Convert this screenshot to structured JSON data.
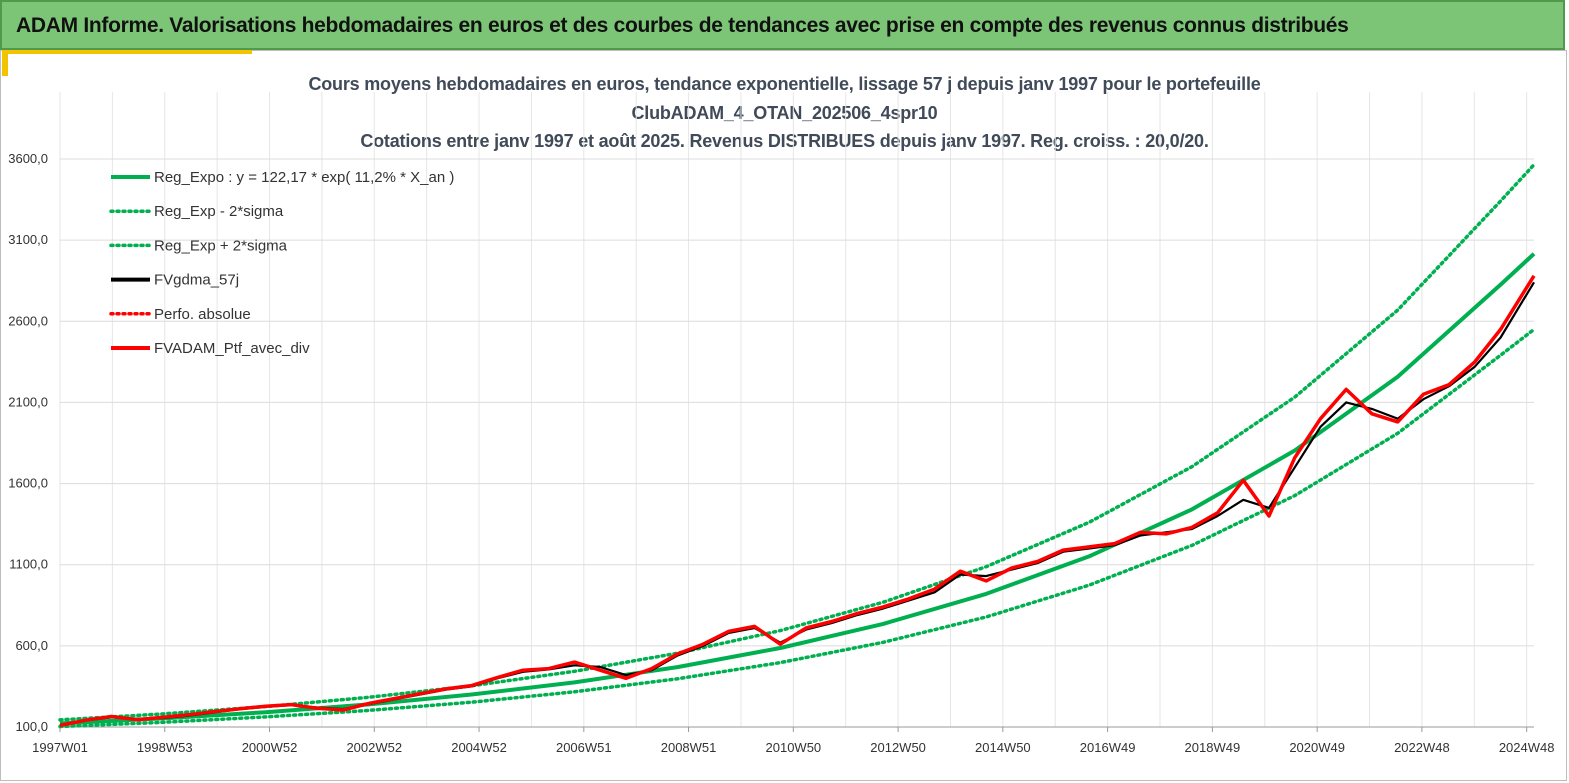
{
  "banner": {
    "title": "ADAM Informe. Valorisations hebdomadaires en euros et des courbes de tendances avec prise en compte des revenus connus distribués"
  },
  "chart_data": {
    "type": "line",
    "title_lines": [
      "Cours moyens hebdomadaires  en euros, tendance exponentielle, lissage 57 j depuis janv 1997 pour le portefeuille",
      "ClubADAM_4_OTAN_202506_4spr10",
      "Cotations  entre janv 1997 et août 2025. Revenus DISTRIBUES depuis janv 1997. Reg. croiss. : 20,0/20."
    ],
    "x_tick_labels": [
      "1997W01",
      "1998W53",
      "2000W52",
      "2002W52",
      "2004W52",
      "2006W51",
      "2008W51",
      "2010W50",
      "2012W50",
      "2014W50",
      "2016W49",
      "2018W49",
      "2020W49",
      "2022W48",
      "2024W48"
    ],
    "y_ticks": [
      100,
      600,
      1100,
      1600,
      2100,
      2600,
      3100,
      3600
    ],
    "y_tick_labels": [
      "100,0",
      "600,0",
      "1100,0",
      "1600,0",
      "2100,0",
      "2600,0",
      "3100,0",
      "3600,0"
    ],
    "ylim": [
      100,
      3600
    ],
    "xlim": [
      1997.0,
      2025.65
    ],
    "grid": true,
    "legend_position": "top-left",
    "series": [
      {
        "name": "Reg_Expo : y = 122,17 * exp( 11,2% *  X_an )",
        "color": "#00b050",
        "style": "solid",
        "x": [
          1997,
          1999,
          2001,
          2003,
          2005,
          2007,
          2009,
          2011,
          2013,
          2015,
          2017,
          2019,
          2021,
          2023,
          2025,
          2025.65
        ],
        "values": [
          122,
          153,
          191,
          239,
          300,
          375,
          469,
          587,
          735,
          920,
          1151,
          1441,
          1804,
          2258,
          2826,
          3016
        ]
      },
      {
        "name": "Reg_Exp - 2*sigma",
        "color": "#00b050",
        "style": "dotted",
        "x": [
          1997,
          1999,
          2001,
          2003,
          2005,
          2007,
          2009,
          2011,
          2013,
          2015,
          2017,
          2019,
          2021,
          2023,
          2025,
          2025.65
        ],
        "values": [
          103,
          129,
          162,
          202,
          253,
          317,
          397,
          497,
          622,
          778,
          974,
          1219,
          1526,
          1910,
          2391,
          2550
        ]
      },
      {
        "name": "Reg_Exp + 2*sigma",
        "color": "#00b050",
        "style": "dotted",
        "x": [
          1997,
          1999,
          2001,
          2003,
          2005,
          2007,
          2009,
          2011,
          2013,
          2015,
          2017,
          2019,
          2021,
          2023,
          2025,
          2025.65
        ],
        "values": [
          144,
          181,
          226,
          283,
          354,
          443,
          555,
          694,
          869,
          1088,
          1361,
          1704,
          2133,
          2669,
          3341,
          3565
        ]
      },
      {
        "name": "FVgdma_57j",
        "color": "#000000",
        "style": "solid",
        "x": [
          1997.0,
          1997.5,
          1998.0,
          1998.5,
          1999.0,
          1999.5,
          2000.0,
          2000.5,
          2001.0,
          2001.5,
          2002.0,
          2002.5,
          2003.0,
          2003.5,
          2004.0,
          2004.5,
          2005.0,
          2005.5,
          2006.0,
          2006.5,
          2007.0,
          2007.5,
          2008.0,
          2008.5,
          2009.0,
          2009.5,
          2010.0,
          2010.5,
          2011.0,
          2011.5,
          2012.0,
          2012.5,
          2013.0,
          2013.5,
          2014.0,
          2014.5,
          2015.0,
          2015.5,
          2016.0,
          2016.5,
          2017.0,
          2017.5,
          2018.0,
          2018.5,
          2019.0,
          2019.5,
          2020.0,
          2020.5,
          2021.0,
          2021.5,
          2022.0,
          2022.5,
          2023.0,
          2023.5,
          2024.0,
          2024.5,
          2025.0,
          2025.65
        ],
        "values": [
          110,
          140,
          160,
          150,
          155,
          170,
          190,
          210,
          225,
          235,
          220,
          210,
          240,
          270,
          300,
          330,
          350,
          400,
          440,
          455,
          480,
          470,
          420,
          450,
          540,
          600,
          680,
          710,
          620,
          700,
          740,
          790,
          830,
          880,
          930,
          1040,
          1030,
          1070,
          1110,
          1180,
          1200,
          1220,
          1280,
          1300,
          1320,
          1400,
          1500,
          1450,
          1700,
          1950,
          2100,
          2060,
          2000,
          2120,
          2200,
          2320,
          2500,
          2840
        ]
      },
      {
        "name": "Perfo. absolue",
        "color": "#ff0000",
        "style": "dotted",
        "x": [],
        "values": []
      },
      {
        "name": "FVADAM_Ptf_avec_div",
        "color": "#ff0000",
        "style": "solid",
        "x": [
          1997.0,
          1997.5,
          1998.0,
          1998.5,
          1999.0,
          1999.5,
          2000.0,
          2000.5,
          2001.0,
          2001.5,
          2002.0,
          2002.5,
          2003.0,
          2003.5,
          2004.0,
          2004.5,
          2005.0,
          2005.5,
          2006.0,
          2006.5,
          2007.0,
          2007.5,
          2008.0,
          2008.5,
          2009.0,
          2009.5,
          2010.0,
          2010.5,
          2011.0,
          2011.5,
          2012.0,
          2012.5,
          2013.0,
          2013.5,
          2014.0,
          2014.5,
          2015.0,
          2015.5,
          2016.0,
          2016.5,
          2017.0,
          2017.5,
          2018.0,
          2018.5,
          2019.0,
          2019.5,
          2020.0,
          2020.5,
          2021.0,
          2021.5,
          2022.0,
          2022.5,
          2023.0,
          2023.5,
          2024.0,
          2024.5,
          2025.0,
          2025.65
        ],
        "values": [
          110,
          142,
          165,
          145,
          160,
          175,
          195,
          212,
          228,
          238,
          215,
          205,
          245,
          275,
          305,
          335,
          355,
          405,
          450,
          460,
          500,
          450,
          400,
          460,
          550,
          610,
          690,
          720,
          610,
          710,
          750,
          800,
          840,
          890,
          950,
          1060,
          1000,
          1080,
          1120,
          1190,
          1210,
          1230,
          1300,
          1290,
          1330,
          1420,
          1620,
          1400,
          1760,
          2000,
          2180,
          2030,
          1980,
          2150,
          2210,
          2350,
          2550,
          2880
        ]
      }
    ]
  }
}
